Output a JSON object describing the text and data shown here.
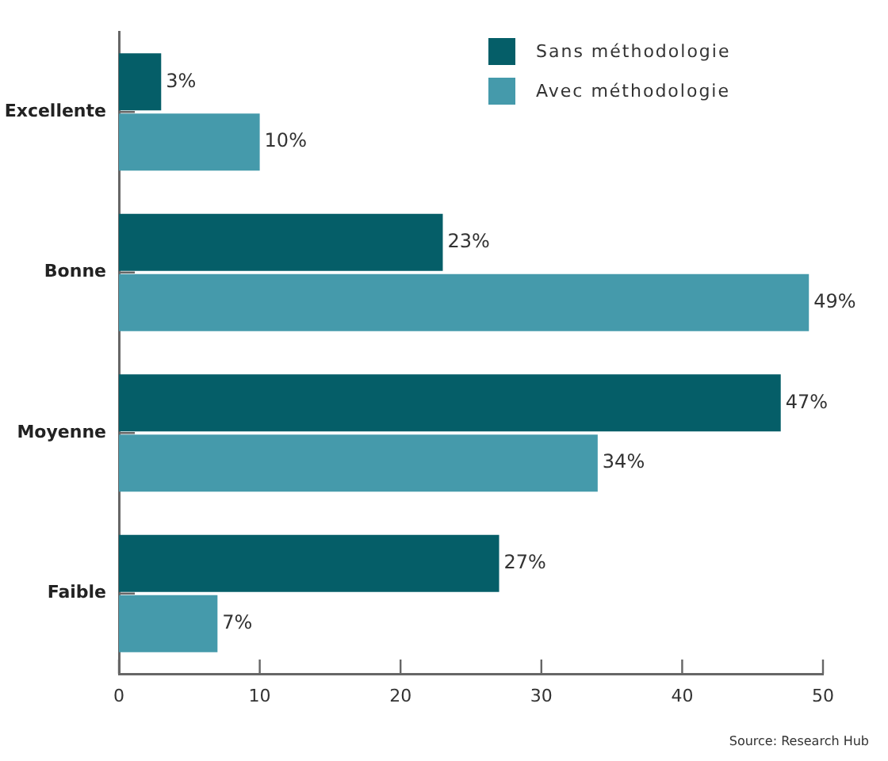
{
  "chart_data": {
    "type": "bar",
    "orientation": "horizontal",
    "categories": [
      "Excellente",
      "Bonne",
      "Moyenne",
      "Faible"
    ],
    "series": [
      {
        "name": "Sans méthodologie",
        "color": "#055e68",
        "values": [
          3,
          23,
          47,
          27
        ],
        "value_labels": [
          "3%",
          "23%",
          "47%",
          "27%"
        ]
      },
      {
        "name": "Avec méthodologie",
        "color": "#459aab",
        "values": [
          10,
          49,
          34,
          7
        ],
        "value_labels": [
          "10%",
          "49%",
          "34%",
          "7%"
        ]
      }
    ],
    "xlim": [
      0,
      50
    ],
    "xticks": [
      0,
      10,
      20,
      30,
      40,
      50
    ],
    "grid": false,
    "legend": "top right",
    "annotations": [
      "Source: Research Hub"
    ]
  }
}
